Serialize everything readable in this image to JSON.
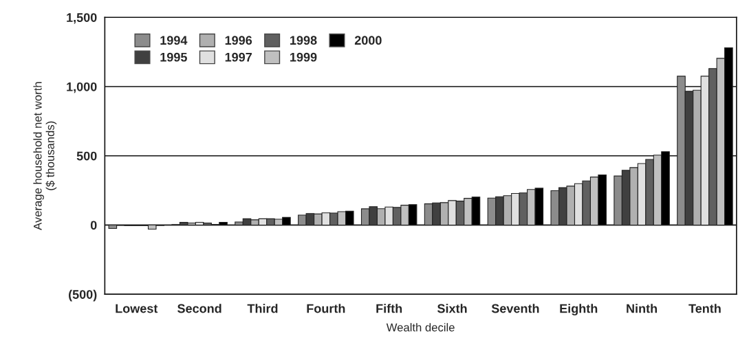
{
  "chart_data": {
    "type": "bar",
    "xlabel": "Wealth decile",
    "ylabel": "Average household net worth\n($ thousands)",
    "categories": [
      "Lowest",
      "Second",
      "Third",
      "Fourth",
      "Fifth",
      "Sixth",
      "Seventh",
      "Eighth",
      "Ninth",
      "Tenth"
    ],
    "series": [
      {
        "name": "1994",
        "color": "#8c8c8c",
        "values": [
          -25,
          3,
          22,
          72,
          117,
          153,
          195,
          248,
          354,
          1075
        ]
      },
      {
        "name": "1995",
        "color": "#404040",
        "values": [
          -2,
          20,
          45,
          83,
          133,
          160,
          205,
          270,
          395,
          966
        ]
      },
      {
        "name": "1996",
        "color": "#b0b0b0",
        "values": [
          -5,
          15,
          38,
          80,
          118,
          162,
          212,
          281,
          415,
          974
        ]
      },
      {
        "name": "1997",
        "color": "#e0e0e0",
        "values": [
          -5,
          20,
          45,
          88,
          130,
          177,
          228,
          299,
          444,
          1075
        ]
      },
      {
        "name": "1998",
        "color": "#606060",
        "values": [
          -5,
          15,
          45,
          87,
          127,
          173,
          232,
          319,
          474,
          1130
        ]
      },
      {
        "name": "1999",
        "color": "#c0c0c0",
        "values": [
          -30,
          5,
          42,
          97,
          143,
          193,
          257,
          347,
          505,
          1204
        ]
      },
      {
        "name": "2000",
        "color": "#000000",
        "values": [
          -3,
          20,
          55,
          100,
          147,
          202,
          266,
          362,
          530,
          1280
        ]
      }
    ],
    "ylim": [
      -500,
      1500
    ],
    "yticks": [
      {
        "value": -500,
        "label": "(500)"
      },
      0,
      500,
      {
        "value": 1000,
        "label": "1,000"
      },
      {
        "value": 1500,
        "label": "1,500"
      }
    ],
    "grid": "y",
    "legend": "top left"
  }
}
